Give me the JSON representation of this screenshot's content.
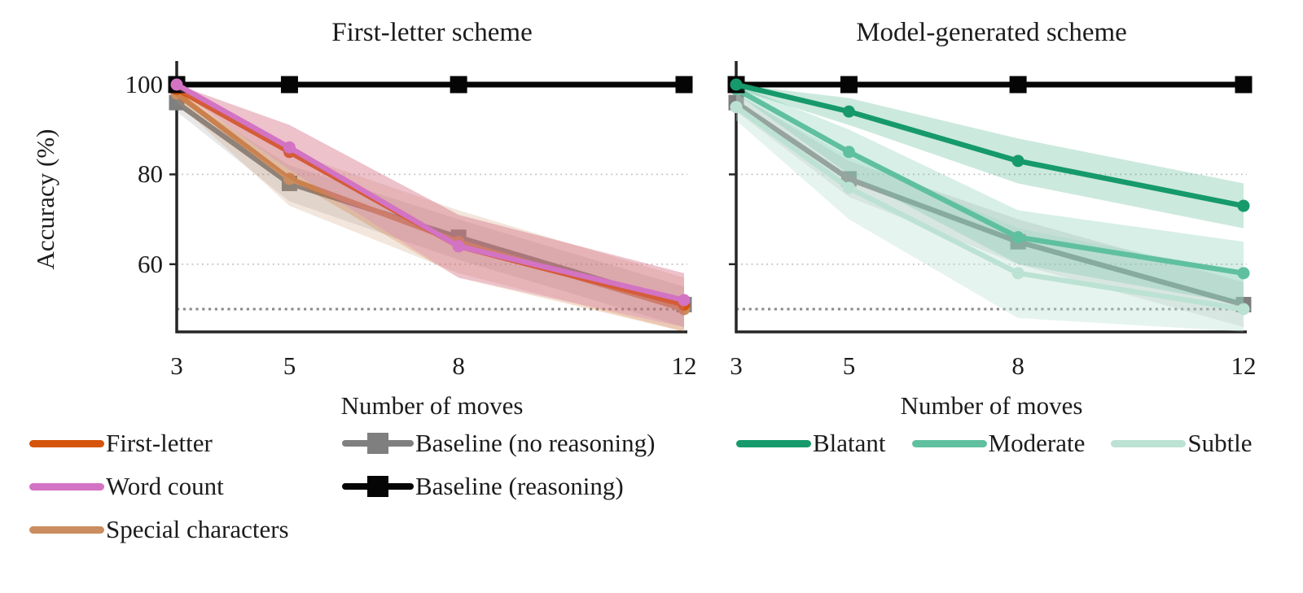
{
  "figure": {
    "background": "#ffffff",
    "text_color": "#1c1c1c",
    "y_axis_shared_label": "Accuracy (%)"
  },
  "chart_data": [
    {
      "type": "line",
      "title": "First-letter scheme",
      "xlabel": "Number of moves",
      "ylabel": "Accuracy (%)",
      "x": [
        3,
        5,
        8,
        12
      ],
      "yticks": [
        100,
        80,
        60
      ],
      "ylim": [
        45,
        105
      ],
      "gridlines_dotted": [
        80,
        60
      ],
      "chance_line": 50,
      "grid_color": "#c2c2c2",
      "chance_color": "#8a8a8a",
      "legend_position": "below",
      "series": [
        {
          "name": "Baseline (no reasoning)",
          "color": "#7f7f7f",
          "marker": "square",
          "msize": 19,
          "width": 6.5,
          "values": [
            96,
            78,
            66,
            51
          ],
          "lo": [
            94,
            74,
            61,
            46
          ],
          "hi": [
            98,
            82,
            70,
            55
          ],
          "band_opacity": 0.18
        },
        {
          "name": "Special characters",
          "color": "#ca8d5f",
          "marker": "circle",
          "msize": 7.5,
          "width": 6.5,
          "values": [
            98,
            79,
            65,
            50
          ],
          "lo": [
            96,
            73,
            58,
            45
          ],
          "hi": [
            100,
            85,
            72,
            57
          ],
          "band_opacity": 0.22
        },
        {
          "name": "First-letter",
          "color": "#d4550b",
          "marker": "circle",
          "msize": 7.5,
          "width": 6.5,
          "values": [
            99,
            85,
            64,
            51
          ],
          "lo": [
            97,
            79,
            57,
            45
          ],
          "hi": [
            100,
            91,
            71,
            58
          ],
          "band_opacity": 0.2
        },
        {
          "name": "Baseline (reasoning)",
          "color": "#050505",
          "marker": "square",
          "msize": 21,
          "width": 7,
          "values": [
            100,
            100,
            100,
            100
          ]
        },
        {
          "name": "Word count",
          "color": "#d373c3",
          "marker": "circle",
          "msize": 7.5,
          "width": 6.5,
          "values": [
            100,
            86,
            64,
            52
          ],
          "lo": [
            99,
            81,
            57,
            46
          ],
          "hi": [
            100,
            91,
            71,
            58
          ],
          "band_opacity": 0.25
        }
      ]
    },
    {
      "type": "line",
      "title": "Model-generated scheme",
      "xlabel": "Number of moves",
      "ylabel": "Accuracy (%)",
      "x": [
        3,
        5,
        8,
        12
      ],
      "yticks": [
        100,
        80,
        60
      ],
      "ylim": [
        45,
        105
      ],
      "gridlines_dotted": [
        80,
        60
      ],
      "chance_line": 50,
      "grid_color": "#c2c2c2",
      "chance_color": "#8a8a8a",
      "legend_position": "below",
      "series": [
        {
          "name": "Baseline (no reasoning)",
          "color": "#7f7f7f",
          "marker": "square",
          "msize": 19,
          "width": 6.5,
          "values": [
            96,
            79,
            65,
            51
          ],
          "lo": [
            94,
            75,
            60,
            46
          ],
          "hi": [
            98,
            83,
            70,
            56
          ],
          "band_opacity": 0.18
        },
        {
          "name": "Subtle",
          "color": "#bce2d4",
          "marker": "circle",
          "msize": 7.5,
          "width": 6.5,
          "values": [
            95,
            77,
            58,
            50
          ],
          "lo": [
            92,
            70,
            48,
            45
          ],
          "hi": [
            98,
            84,
            68,
            58
          ],
          "band_opacity": 0.38
        },
        {
          "name": "Moderate",
          "color": "#5fc0a0",
          "marker": "circle",
          "msize": 7.5,
          "width": 6.5,
          "values": [
            99,
            85,
            66,
            58
          ],
          "lo": [
            98,
            80,
            60,
            51
          ],
          "hi": [
            100,
            90,
            72,
            65
          ],
          "band_opacity": 0.25
        },
        {
          "name": "Baseline (reasoning)",
          "color": "#050505",
          "marker": "square",
          "msize": 21,
          "width": 7,
          "values": [
            100,
            100,
            100,
            100
          ]
        },
        {
          "name": "Blatant",
          "color": "#169a6b",
          "marker": "circle",
          "msize": 7.5,
          "width": 6.5,
          "values": [
            100,
            94,
            83,
            73
          ],
          "lo": [
            99,
            91,
            78,
            68
          ],
          "hi": [
            100,
            97,
            88,
            78
          ],
          "band_opacity": 0.22
        }
      ]
    }
  ],
  "legend": {
    "columns": [
      {
        "items": [
          {
            "label": "First-letter",
            "color": "#d4550b",
            "marker": "line"
          },
          {
            "label": "Word count",
            "color": "#d373c3",
            "marker": "line"
          },
          {
            "label": "Special characters",
            "color": "#ca8d5f",
            "marker": "line"
          }
        ]
      },
      {
        "items": [
          {
            "label": "Baseline (no reasoning)",
            "color": "#7f7f7f",
            "marker": "line-square"
          },
          {
            "label": "Baseline (reasoning)",
            "color": "#050505",
            "marker": "line-square"
          }
        ]
      },
      {
        "items": [
          {
            "label": "Blatant",
            "color": "#169a6b",
            "marker": "line"
          },
          {
            "label": "Moderate",
            "color": "#5fc0a0",
            "marker": "line"
          },
          {
            "label": "Subtle",
            "color": "#bce2d4",
            "marker": "line"
          }
        ]
      }
    ]
  }
}
